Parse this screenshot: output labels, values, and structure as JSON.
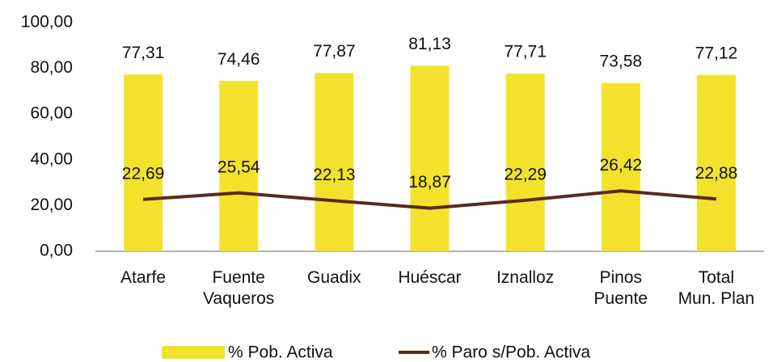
{
  "chart_data": {
    "type": "combo",
    "categories": [
      "Atarfe",
      "Fuente\nVaqueros",
      "Guadix",
      "Huéscar",
      "Iznalloz",
      "Pinos\nPuente",
      "Total\nMun. Plan"
    ],
    "series": [
      {
        "name": "% Pob. Activa",
        "type": "bar",
        "color": "#f3e22c",
        "values": [
          77.31,
          74.46,
          77.87,
          81.13,
          77.71,
          73.58,
          77.12
        ],
        "value_labels": [
          "77,31",
          "74,46",
          "77,87",
          "81,13",
          "77,71",
          "73,58",
          "77,12"
        ]
      },
      {
        "name": "% Paro s/Pob. Activa",
        "type": "line",
        "color": "#5a2a1c",
        "values": [
          22.69,
          25.54,
          22.13,
          18.87,
          22.29,
          26.42,
          22.88
        ],
        "value_labels": [
          "22,69",
          "25,54",
          "22,13",
          "18,87",
          "22,29",
          "26,42",
          "22,88"
        ]
      }
    ],
    "ylim": [
      0,
      100
    ],
    "yticks": [
      {
        "value": 0,
        "label": "0,00"
      },
      {
        "value": 20,
        "label": "20,00"
      },
      {
        "value": 40,
        "label": "40,00"
      },
      {
        "value": 60,
        "label": "60,00"
      },
      {
        "value": 80,
        "label": "80,00"
      },
      {
        "value": 100,
        "label": "100,00"
      }
    ],
    "grid": false,
    "legend": "bottom"
  }
}
